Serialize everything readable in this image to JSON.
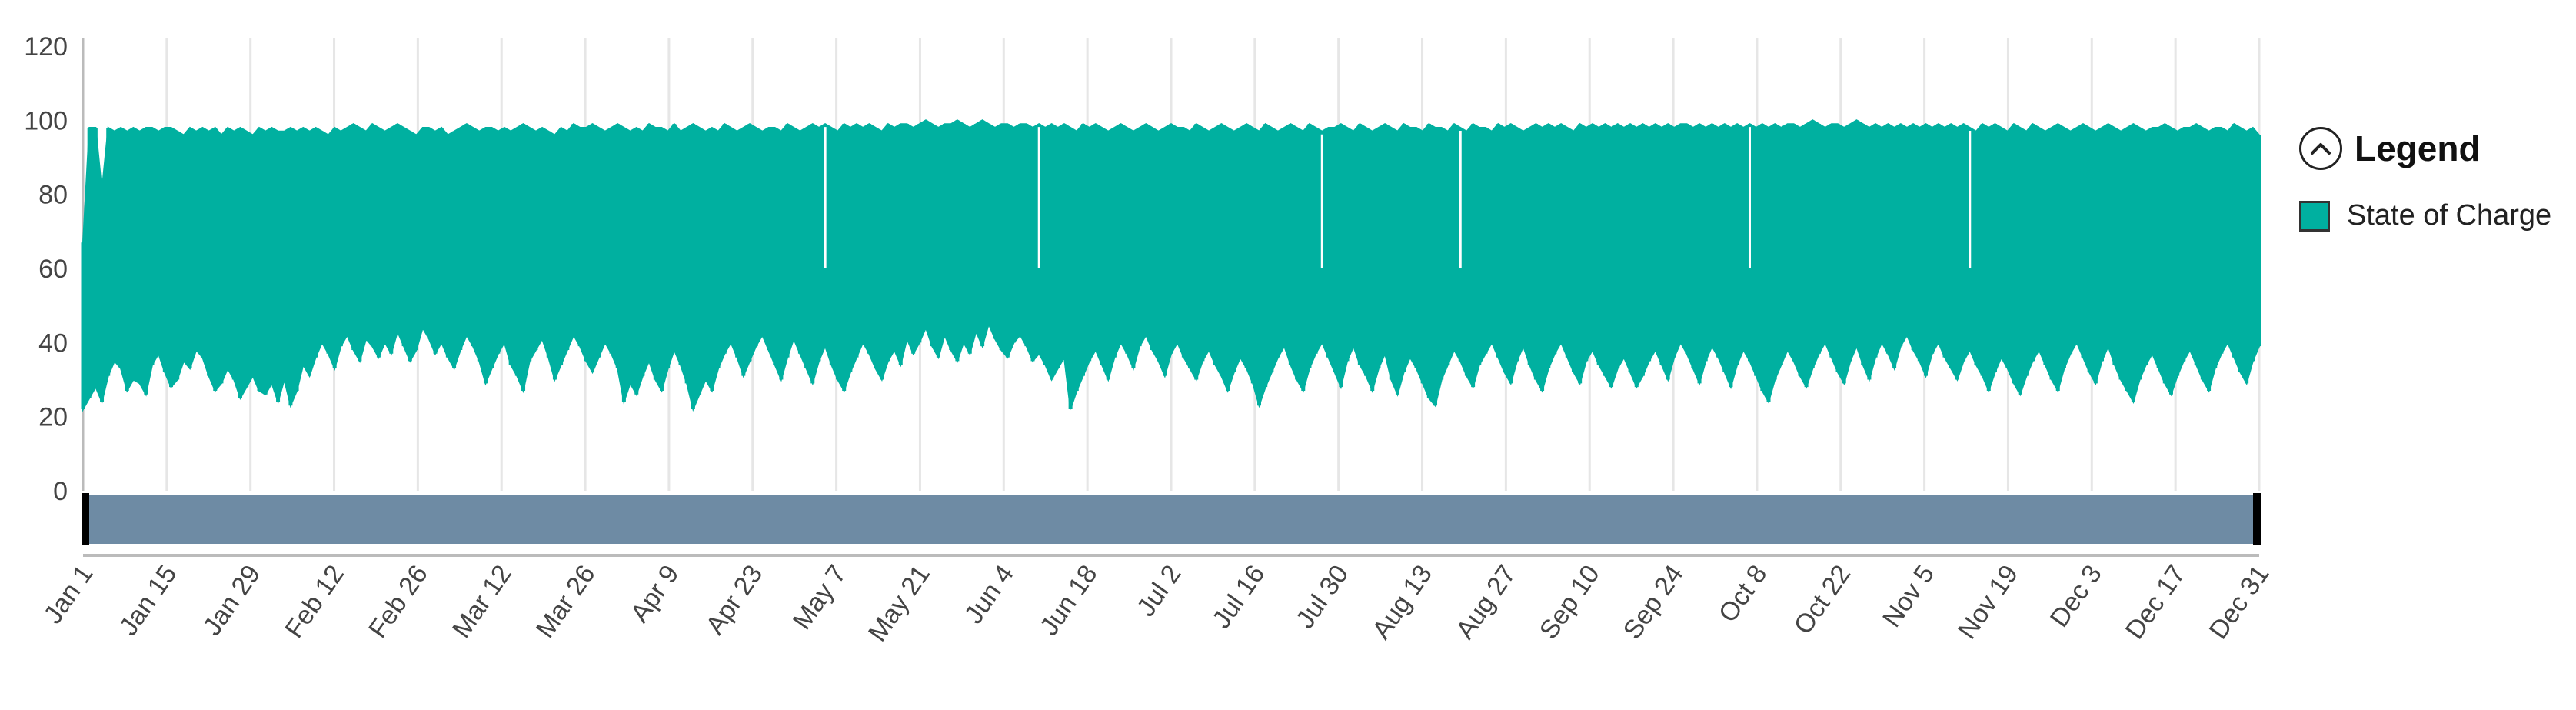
{
  "chart_data": {
    "type": "area",
    "title": "",
    "xlabel": "",
    "ylabel": "",
    "ylim": [
      0,
      120
    ],
    "yticks": [
      0,
      20,
      40,
      60,
      80,
      100,
      120
    ],
    "xlim": [
      "Jan 1",
      "Dec 31"
    ],
    "x_tick_labels": [
      "Jan 1",
      "Jan 15",
      "Jan 29",
      "Feb 12",
      "Feb 26",
      "Mar 12",
      "Mar 26",
      "Apr 9",
      "Apr 23",
      "May 7",
      "May 21",
      "Jun 4",
      "Jun 18",
      "Jul 2",
      "Jul 16",
      "Jul 30",
      "Aug 13",
      "Aug 27",
      "Sep 10",
      "Sep 24",
      "Oct 8",
      "Oct 22",
      "Nov 5",
      "Nov 19",
      "Dec 3",
      "Dec 17",
      "Dec 31"
    ],
    "grid": true,
    "legend_position": "right",
    "series": [
      {
        "name": "State of Charge",
        "color": "#00B0A0",
        "period": "daily",
        "x_start": "Jan 1",
        "x_end": "Dec 31",
        "daily_max": [
          67,
          98,
          98,
          81,
          98,
          97,
          98,
          97,
          98,
          97,
          98,
          98,
          97,
          98,
          98,
          97,
          96,
          98,
          97,
          98,
          97,
          98,
          96,
          98,
          97,
          98,
          97,
          96,
          98,
          97,
          98,
          97,
          97,
          98,
          97,
          98,
          97,
          98,
          97,
          96,
          98,
          97,
          98,
          99,
          98,
          97,
          99,
          98,
          97,
          98,
          99,
          98,
          97,
          96,
          98,
          98,
          97,
          98,
          96,
          97,
          98,
          99,
          98,
          97,
          98,
          98,
          97,
          98,
          97,
          98,
          99,
          98,
          97,
          98,
          97,
          96,
          98,
          97,
          99,
          98,
          98,
          99,
          98,
          97,
          98,
          99,
          98,
          97,
          98,
          97,
          99,
          98,
          98,
          97,
          99,
          97,
          98,
          99,
          98,
          97,
          98,
          97,
          99,
          98,
          97,
          98,
          99,
          98,
          97,
          98,
          98,
          97,
          99,
          98,
          97,
          98,
          99,
          98,
          99,
          98,
          97,
          99,
          98,
          99,
          98,
          99,
          98,
          97,
          99,
          98,
          99,
          99,
          98,
          99,
          100,
          99,
          98,
          99,
          99,
          100,
          99,
          98,
          99,
          100,
          99,
          98,
          99,
          99,
          98,
          99,
          99,
          98,
          99,
          98,
          99,
          98,
          99,
          98,
          97,
          99,
          98,
          99,
          98,
          97,
          98,
          99,
          98,
          97,
          98,
          99,
          98,
          97,
          98,
          99,
          98,
          98,
          97,
          99,
          98,
          97,
          98,
          99,
          98,
          97,
          98,
          99,
          98,
          97,
          99,
          98,
          97,
          98,
          99,
          98,
          97,
          99,
          98,
          97,
          98,
          98,
          99,
          98,
          97,
          99,
          98,
          97,
          98,
          99,
          98,
          97,
          99,
          98,
          98,
          97,
          99,
          98,
          98,
          97,
          99,
          98,
          97,
          99,
          98,
          98,
          97,
          99,
          98,
          99,
          98,
          97,
          98,
          99,
          98,
          99,
          98,
          99,
          98,
          97,
          99,
          98,
          99,
          98,
          99,
          98,
          99,
          98,
          99,
          98,
          99,
          98,
          99,
          98,
          99,
          98,
          99,
          99,
          98,
          99,
          98,
          99,
          98,
          99,
          98,
          99,
          98,
          99,
          98,
          99,
          98,
          99,
          98,
          99,
          99,
          98,
          99,
          100,
          99,
          98,
          99,
          99,
          98,
          99,
          100,
          99,
          98,
          99,
          98,
          99,
          98,
          99,
          98,
          99,
          98,
          99,
          98,
          99,
          98,
          99,
          98,
          99,
          98,
          97,
          99,
          98,
          99,
          98,
          97,
          99,
          98,
          97,
          99,
          98,
          97,
          98,
          99,
          98,
          97,
          98,
          99,
          98,
          97,
          98,
          99,
          98,
          97,
          98,
          99,
          98,
          97,
          98,
          98,
          99,
          98,
          97,
          98,
          98,
          99,
          98,
          97,
          98,
          98,
          97,
          99,
          98,
          97,
          98,
          96
        ],
        "daily_min": [
          22,
          25,
          28,
          24,
          31,
          35,
          33,
          27,
          30,
          29,
          26,
          34,
          37,
          32,
          28,
          30,
          35,
          33,
          38,
          36,
          31,
          27,
          29,
          33,
          30,
          25,
          28,
          31,
          27,
          26,
          29,
          24,
          30,
          23,
          27,
          34,
          31,
          36,
          40,
          37,
          33,
          39,
          42,
          38,
          35,
          41,
          39,
          36,
          40,
          37,
          43,
          39,
          35,
          38,
          44,
          41,
          37,
          40,
          36,
          33,
          38,
          42,
          39,
          35,
          29,
          33,
          37,
          40,
          34,
          31,
          27,
          35,
          38,
          41,
          36,
          30,
          34,
          38,
          42,
          39,
          35,
          32,
          36,
          40,
          37,
          33,
          24,
          29,
          26,
          31,
          35,
          30,
          27,
          33,
          38,
          34,
          29,
          22,
          26,
          30,
          27,
          33,
          37,
          40,
          36,
          31,
          35,
          39,
          42,
          38,
          34,
          30,
          36,
          41,
          37,
          33,
          29,
          35,
          39,
          34,
          30,
          27,
          32,
          36,
          40,
          37,
          33,
          30,
          35,
          38,
          34,
          41,
          37,
          40,
          44,
          39,
          36,
          42,
          38,
          35,
          40,
          37,
          43,
          39,
          45,
          41,
          38,
          36,
          40,
          42,
          39,
          35,
          37,
          34,
          30,
          33,
          36,
          22,
          27,
          31,
          35,
          38,
          34,
          30,
          36,
          40,
          37,
          33,
          39,
          42,
          38,
          35,
          31,
          37,
          40,
          36,
          33,
          30,
          35,
          38,
          34,
          31,
          27,
          32,
          36,
          33,
          29,
          23,
          28,
          32,
          36,
          39,
          34,
          30,
          27,
          33,
          37,
          40,
          36,
          32,
          28,
          35,
          39,
          34,
          31,
          27,
          33,
          37,
          30,
          26,
          32,
          36,
          33,
          29,
          25,
          23,
          30,
          34,
          38,
          35,
          31,
          28,
          34,
          37,
          40,
          36,
          32,
          29,
          35,
          39,
          34,
          30,
          27,
          33,
          37,
          40,
          36,
          32,
          29,
          35,
          38,
          34,
          31,
          28,
          33,
          36,
          32,
          28,
          31,
          35,
          38,
          34,
          30,
          36,
          40,
          37,
          33,
          29,
          35,
          39,
          36,
          32,
          28,
          34,
          38,
          35,
          31,
          27,
          24,
          30,
          34,
          38,
          35,
          31,
          28,
          33,
          37,
          40,
          36,
          32,
          29,
          35,
          39,
          34,
          30,
          36,
          40,
          37,
          33,
          39,
          42,
          38,
          35,
          31,
          37,
          40,
          36,
          33,
          30,
          35,
          38,
          34,
          31,
          27,
          32,
          36,
          33,
          29,
          26,
          31,
          35,
          38,
          34,
          30,
          27,
          33,
          37,
          40,
          36,
          32,
          29,
          35,
          39,
          34,
          30,
          27,
          24,
          30,
          34,
          37,
          33,
          29,
          26,
          31,
          35,
          38,
          34,
          30,
          27,
          33,
          37,
          40,
          36,
          32,
          29,
          35,
          39,
          34,
          30,
          27,
          28
        ]
      }
    ]
  },
  "legend": {
    "title": "Legend",
    "toggle_icon": "chevron-up-icon",
    "items": [
      {
        "label": "State of Charge",
        "color": "#00B0A0"
      }
    ]
  },
  "navigator": {
    "fill_color": "#6E8BA4",
    "handle_color": "#000000"
  },
  "colors": {
    "gridline": "#E6E6E6",
    "axis": "#BBBBBB",
    "text": "#444444"
  }
}
